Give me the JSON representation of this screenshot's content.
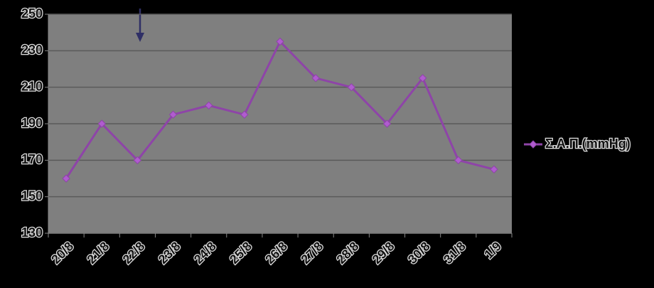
{
  "chart_data": {
    "type": "line",
    "categories": [
      "20/8",
      "21/8",
      "22/8",
      "23/8",
      "24/8",
      "25/8",
      "26/8",
      "27/8",
      "28/8",
      "29/8",
      "30/8",
      "31/8",
      "1/9"
    ],
    "series": [
      {
        "name": "Σ.Α.Π.(mmHg)",
        "color": "#8e44a8",
        "values": [
          160,
          190,
          170,
          195,
          200,
          195,
          235,
          215,
          210,
          190,
          215,
          170,
          165
        ]
      }
    ],
    "ylim": [
      130,
      250
    ],
    "yticks": [
      130,
      150,
      170,
      190,
      210,
      230,
      250
    ],
    "grid": true,
    "legend": "right"
  }
}
